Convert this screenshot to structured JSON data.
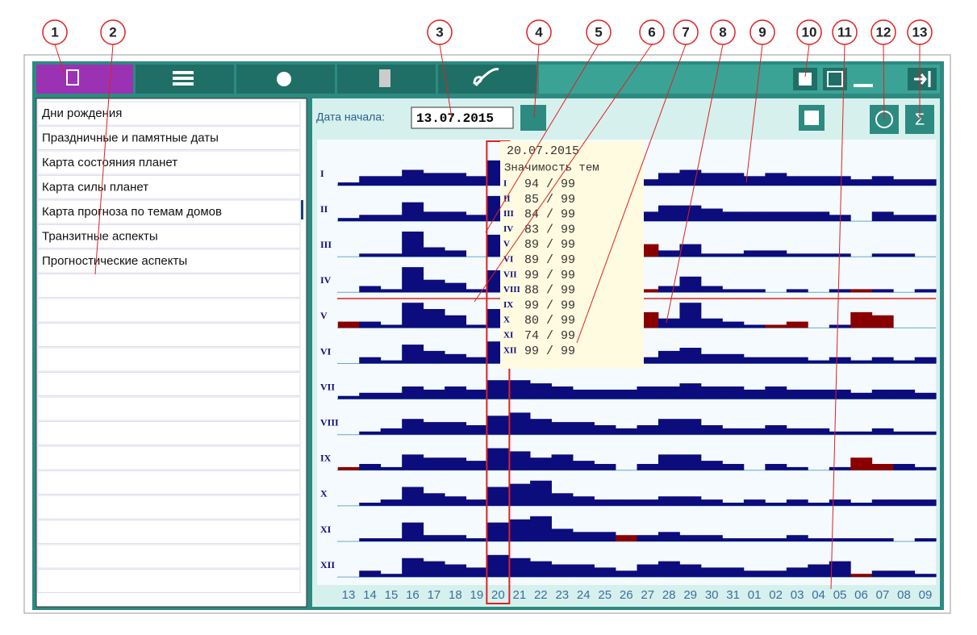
{
  "callouts": [
    "1",
    "2",
    "3",
    "4",
    "5",
    "6",
    "7",
    "8",
    "9",
    "10",
    "11",
    "12",
    "13"
  ],
  "menu": {
    "items": [
      "Дни рождения",
      "Праздничные и памятные даты",
      "Карта состояния планет",
      "Карта силы планет",
      "Карта прогноза по темам домов",
      "Транзитные аспекты",
      "Прогностические аспекты"
    ]
  },
  "date_label": "Дата начала:",
  "date_value": "13.07.2015",
  "chart_data": {
    "type": "bar",
    "positive_color": "#0c0c7c",
    "negative_color": "#8a0000",
    "categories": [
      "13",
      "14",
      "15",
      "16",
      "17",
      "18",
      "19",
      "20",
      "21",
      "22",
      "23",
      "24",
      "25",
      "26",
      "27",
      "28",
      "29",
      "30",
      "31",
      "01",
      "02",
      "03",
      "04",
      "05",
      "06",
      "07",
      "08",
      "09"
    ],
    "selected": 7,
    "rows": [
      {
        "name": "I",
        "values": [
          1,
          3,
          3,
          5,
          4,
          4,
          3,
          8,
          5,
          5,
          4,
          4,
          3,
          3,
          2,
          4,
          5,
          4,
          4,
          3,
          4,
          3,
          3,
          3,
          2,
          3,
          2,
          2
        ]
      },
      {
        "name": "II",
        "values": [
          1,
          2,
          2,
          6,
          3,
          3,
          2,
          8,
          6,
          6,
          5,
          4,
          4,
          3,
          3,
          5,
          5,
          4,
          3,
          3,
          3,
          3,
          3,
          2,
          0,
          3,
          2,
          2
        ]
      },
      {
        "name": "III",
        "values": [
          0,
          1,
          1,
          8,
          3,
          2,
          0,
          7,
          4,
          4,
          4,
          3,
          3,
          -3,
          -4,
          2,
          4,
          1,
          1,
          2,
          2,
          1,
          1,
          1,
          0,
          1,
          1,
          0
        ]
      },
      {
        "name": "IV",
        "values": [
          0,
          2,
          1,
          8,
          4,
          3,
          1,
          7,
          3,
          3,
          3,
          2,
          2,
          -2,
          -1,
          2,
          5,
          2,
          1,
          1,
          0,
          1,
          0,
          1,
          -1,
          1,
          0,
          1
        ]
      },
      {
        "name": "V",
        "values": [
          -2,
          2,
          1,
          8,
          6,
          4,
          1,
          6,
          3,
          2,
          2,
          1,
          2,
          -5,
          -5,
          3,
          8,
          3,
          2,
          1,
          -1,
          -2,
          0,
          1,
          -5,
          -4,
          0,
          0
        ]
      },
      {
        "name": "VI",
        "values": [
          0,
          2,
          1,
          6,
          4,
          3,
          2,
          7,
          4,
          4,
          3,
          3,
          2,
          -1,
          2,
          4,
          5,
          3,
          3,
          2,
          2,
          2,
          1,
          2,
          1,
          2,
          1,
          2
        ]
      },
      {
        "name": "VII",
        "values": [
          1,
          2,
          2,
          4,
          3,
          4,
          3,
          6,
          6,
          5,
          4,
          3,
          3,
          3,
          4,
          4,
          5,
          4,
          4,
          3,
          4,
          3,
          3,
          3,
          2,
          3,
          3,
          2
        ]
      },
      {
        "name": "VIII",
        "values": [
          0,
          1,
          2,
          5,
          4,
          4,
          3,
          6,
          7,
          5,
          4,
          4,
          3,
          2,
          3,
          5,
          5,
          3,
          2,
          2,
          3,
          2,
          2,
          1,
          1,
          2,
          1,
          1
        ]
      },
      {
        "name": "IX",
        "values": [
          -1,
          2,
          1,
          5,
          4,
          4,
          3,
          7,
          6,
          4,
          5,
          3,
          2,
          0,
          2,
          5,
          5,
          3,
          2,
          0,
          2,
          1,
          0,
          1,
          -4,
          -2,
          2,
          1
        ]
      },
      {
        "name": "X",
        "values": [
          0,
          1,
          2,
          6,
          4,
          3,
          2,
          6,
          7,
          8,
          4,
          3,
          2,
          2,
          2,
          3,
          3,
          2,
          1,
          2,
          1,
          2,
          1,
          2,
          1,
          2,
          2,
          2
        ]
      },
      {
        "name": "XI",
        "values": [
          0,
          1,
          1,
          6,
          2,
          2,
          1,
          6,
          7,
          8,
          4,
          3,
          3,
          -2,
          2,
          3,
          2,
          2,
          1,
          1,
          1,
          2,
          1,
          1,
          1,
          1,
          0,
          1
        ]
      },
      {
        "name": "XII",
        "values": [
          0,
          2,
          1,
          6,
          5,
          4,
          3,
          7,
          6,
          5,
          4,
          4,
          3,
          2,
          4,
          5,
          4,
          3,
          3,
          2,
          2,
          3,
          4,
          5,
          -1,
          2,
          2,
          1
        ]
      }
    ]
  },
  "tooltip": {
    "date": "20.07.2015",
    "title": "Значимость тем",
    "lines": [
      "94 / 99",
      "85 / 99",
      "84 / 99",
      "83 / 99",
      "89 / 99",
      "89 / 99",
      "99 / 99",
      "88 / 99",
      "99 / 99",
      "80 / 99",
      "74 / 99",
      "99 / 99"
    ]
  }
}
